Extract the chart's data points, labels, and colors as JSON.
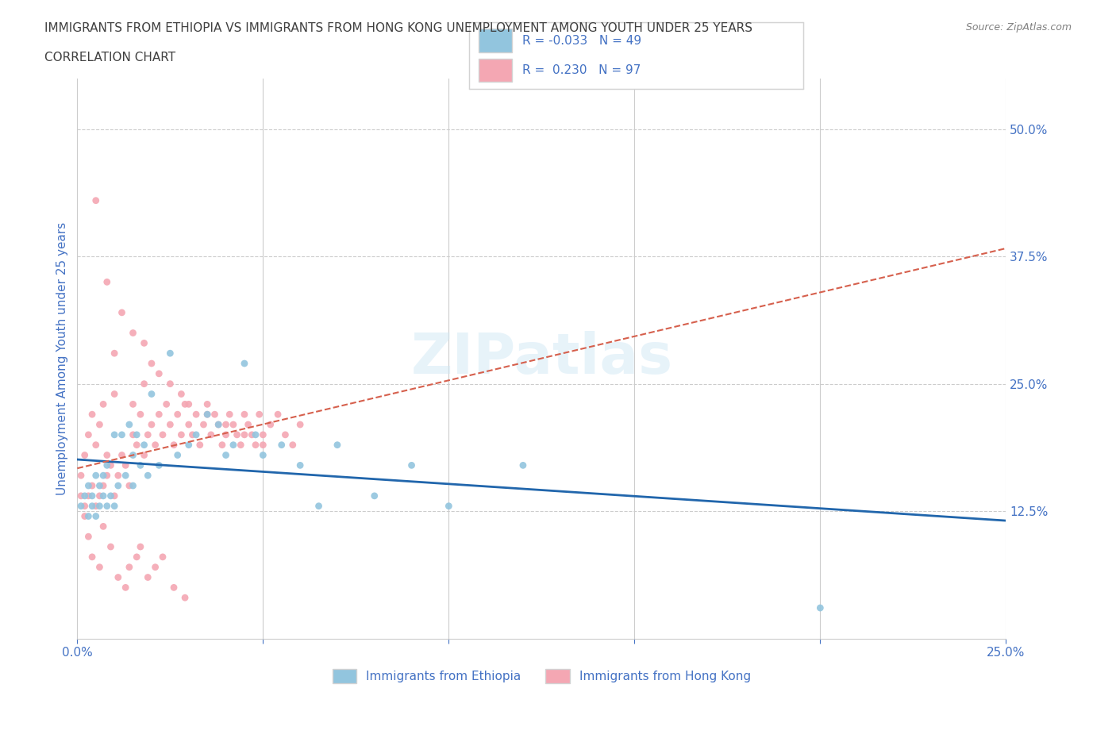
{
  "title_line1": "IMMIGRANTS FROM ETHIOPIA VS IMMIGRANTS FROM HONG KONG UNEMPLOYMENT AMONG YOUTH UNDER 25 YEARS",
  "title_line2": "CORRELATION CHART",
  "source_text": "Source: ZipAtlas.com",
  "xlabel": "",
  "ylabel": "Unemployment Among Youth under 25 years",
  "xlim": [
    0.0,
    0.25
  ],
  "ylim": [
    0.0,
    0.55
  ],
  "right_yticks": [
    0.125,
    0.25,
    0.375,
    0.5
  ],
  "right_yticklabels": [
    "12.5%",
    "25.0%",
    "37.5%",
    "50.0%"
  ],
  "xticks": [
    0.0,
    0.05,
    0.1,
    0.15,
    0.2,
    0.25
  ],
  "xticklabels": [
    "0.0%",
    "",
    "",
    "",
    "",
    "25.0%"
  ],
  "watermark": "ZIPatlas",
  "legend_ethiopia_r": "R = -0.033",
  "legend_ethiopia_n": "N = 49",
  "legend_hongkong_r": "R =  0.230",
  "legend_hongkong_n": "N = 97",
  "ethiopia_color": "#92C5DE",
  "hongkong_color": "#F4A7B3",
  "ethiopia_trend_color": "#2166AC",
  "hongkong_trend_color": "#D6604D",
  "grid_color": "#CCCCCC",
  "title_color": "#404040",
  "axis_label_color": "#4472C4",
  "ethiopia_x": [
    0.001,
    0.002,
    0.003,
    0.003,
    0.004,
    0.004,
    0.005,
    0.005,
    0.006,
    0.006,
    0.007,
    0.007,
    0.008,
    0.008,
    0.009,
    0.01,
    0.01,
    0.011,
    0.012,
    0.013,
    0.014,
    0.015,
    0.015,
    0.016,
    0.017,
    0.018,
    0.019,
    0.02,
    0.022,
    0.025,
    0.027,
    0.03,
    0.032,
    0.035,
    0.038,
    0.04,
    0.042,
    0.045,
    0.048,
    0.05,
    0.055,
    0.06,
    0.065,
    0.07,
    0.08,
    0.09,
    0.1,
    0.12,
    0.2
  ],
  "ethiopia_y": [
    0.13,
    0.14,
    0.12,
    0.15,
    0.13,
    0.14,
    0.12,
    0.16,
    0.13,
    0.15,
    0.14,
    0.16,
    0.13,
    0.17,
    0.14,
    0.13,
    0.2,
    0.15,
    0.2,
    0.16,
    0.21,
    0.15,
    0.18,
    0.2,
    0.17,
    0.19,
    0.16,
    0.24,
    0.17,
    0.28,
    0.18,
    0.19,
    0.2,
    0.22,
    0.21,
    0.18,
    0.19,
    0.27,
    0.2,
    0.18,
    0.19,
    0.17,
    0.13,
    0.19,
    0.14,
    0.17,
    0.13,
    0.17,
    0.03
  ],
  "hongkong_x": [
    0.001,
    0.001,
    0.002,
    0.002,
    0.003,
    0.003,
    0.004,
    0.004,
    0.005,
    0.005,
    0.006,
    0.006,
    0.007,
    0.007,
    0.008,
    0.008,
    0.009,
    0.01,
    0.01,
    0.011,
    0.012,
    0.013,
    0.014,
    0.015,
    0.015,
    0.016,
    0.017,
    0.018,
    0.018,
    0.019,
    0.02,
    0.021,
    0.022,
    0.023,
    0.024,
    0.025,
    0.026,
    0.027,
    0.028,
    0.029,
    0.03,
    0.031,
    0.032,
    0.033,
    0.034,
    0.035,
    0.036,
    0.037,
    0.038,
    0.039,
    0.04,
    0.041,
    0.042,
    0.043,
    0.044,
    0.045,
    0.046,
    0.047,
    0.048,
    0.049,
    0.05,
    0.052,
    0.054,
    0.056,
    0.058,
    0.06,
    0.005,
    0.008,
    0.01,
    0.012,
    0.015,
    0.018,
    0.02,
    0.022,
    0.025,
    0.028,
    0.03,
    0.035,
    0.04,
    0.045,
    0.05,
    0.002,
    0.003,
    0.004,
    0.006,
    0.007,
    0.009,
    0.011,
    0.013,
    0.014,
    0.016,
    0.017,
    0.019,
    0.021,
    0.023,
    0.026,
    0.029
  ],
  "hongkong_y": [
    0.14,
    0.16,
    0.13,
    0.18,
    0.14,
    0.2,
    0.15,
    0.22,
    0.13,
    0.19,
    0.14,
    0.21,
    0.15,
    0.23,
    0.16,
    0.18,
    0.17,
    0.14,
    0.24,
    0.16,
    0.18,
    0.17,
    0.15,
    0.2,
    0.23,
    0.19,
    0.22,
    0.18,
    0.25,
    0.2,
    0.21,
    0.19,
    0.22,
    0.2,
    0.23,
    0.21,
    0.19,
    0.22,
    0.2,
    0.23,
    0.21,
    0.2,
    0.22,
    0.19,
    0.21,
    0.23,
    0.2,
    0.22,
    0.21,
    0.19,
    0.2,
    0.22,
    0.21,
    0.2,
    0.19,
    0.22,
    0.21,
    0.2,
    0.19,
    0.22,
    0.2,
    0.21,
    0.22,
    0.2,
    0.19,
    0.21,
    0.43,
    0.35,
    0.28,
    0.32,
    0.3,
    0.29,
    0.27,
    0.26,
    0.25,
    0.24,
    0.23,
    0.22,
    0.21,
    0.2,
    0.19,
    0.12,
    0.1,
    0.08,
    0.07,
    0.11,
    0.09,
    0.06,
    0.05,
    0.07,
    0.08,
    0.09,
    0.06,
    0.07,
    0.08,
    0.05,
    0.04
  ]
}
